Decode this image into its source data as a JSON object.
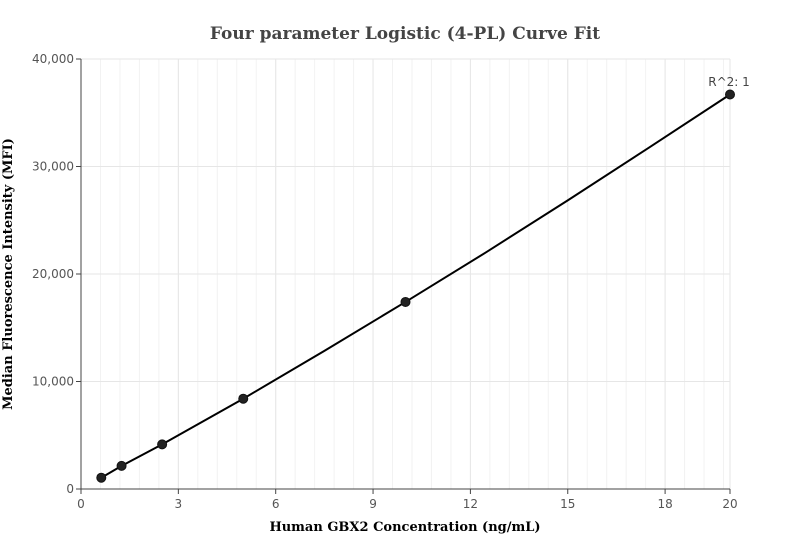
{
  "chart_data": {
    "type": "scatter",
    "title": "Four parameter Logistic (4-PL) Curve Fit",
    "xlabel": "Human GBX2 Concentration  (ng/mL)",
    "ylabel": "Median Fluorescence Intensity (MFI)",
    "xlim": [
      0,
      20
    ],
    "ylim": [
      0,
      40000
    ],
    "x_ticks": [
      0,
      3,
      6,
      9,
      12,
      15,
      18,
      20
    ],
    "x_tick_labels": [
      "0",
      "3",
      "6",
      "9",
      "12",
      "15",
      "18",
      "20"
    ],
    "y_ticks": [
      0,
      10000,
      20000,
      30000,
      40000
    ],
    "y_tick_labels": [
      "0",
      "10,000",
      "20,000",
      "30,000",
      "40,000"
    ],
    "grid": true,
    "annotation": "R^2: 1",
    "series": [
      {
        "points": [
          {
            "x": 0.625,
            "y": 1050
          },
          {
            "x": 1.25,
            "y": 2150
          },
          {
            "x": 2.5,
            "y": 4150
          },
          {
            "x": 5,
            "y": 8400
          },
          {
            "x": 10,
            "y": 17400
          },
          {
            "x": 20,
            "y": 36700
          }
        ],
        "curve": [
          {
            "x": 0.625,
            "y": 1050
          },
          {
            "x": 1.25,
            "y": 2150
          },
          {
            "x": 2.5,
            "y": 4150
          },
          {
            "x": 5,
            "y": 8400
          },
          {
            "x": 7.5,
            "y": 12850
          },
          {
            "x": 10,
            "y": 17400
          },
          {
            "x": 12.5,
            "y": 22050
          },
          {
            "x": 15,
            "y": 26850
          },
          {
            "x": 17.5,
            "y": 31750
          },
          {
            "x": 20,
            "y": 36700
          }
        ]
      }
    ],
    "colors": {
      "line": "#000000",
      "marker": "#222222",
      "grid": "#e6e6e6",
      "grid_minor": "#f2f2f2",
      "axis": "#444444"
    }
  }
}
